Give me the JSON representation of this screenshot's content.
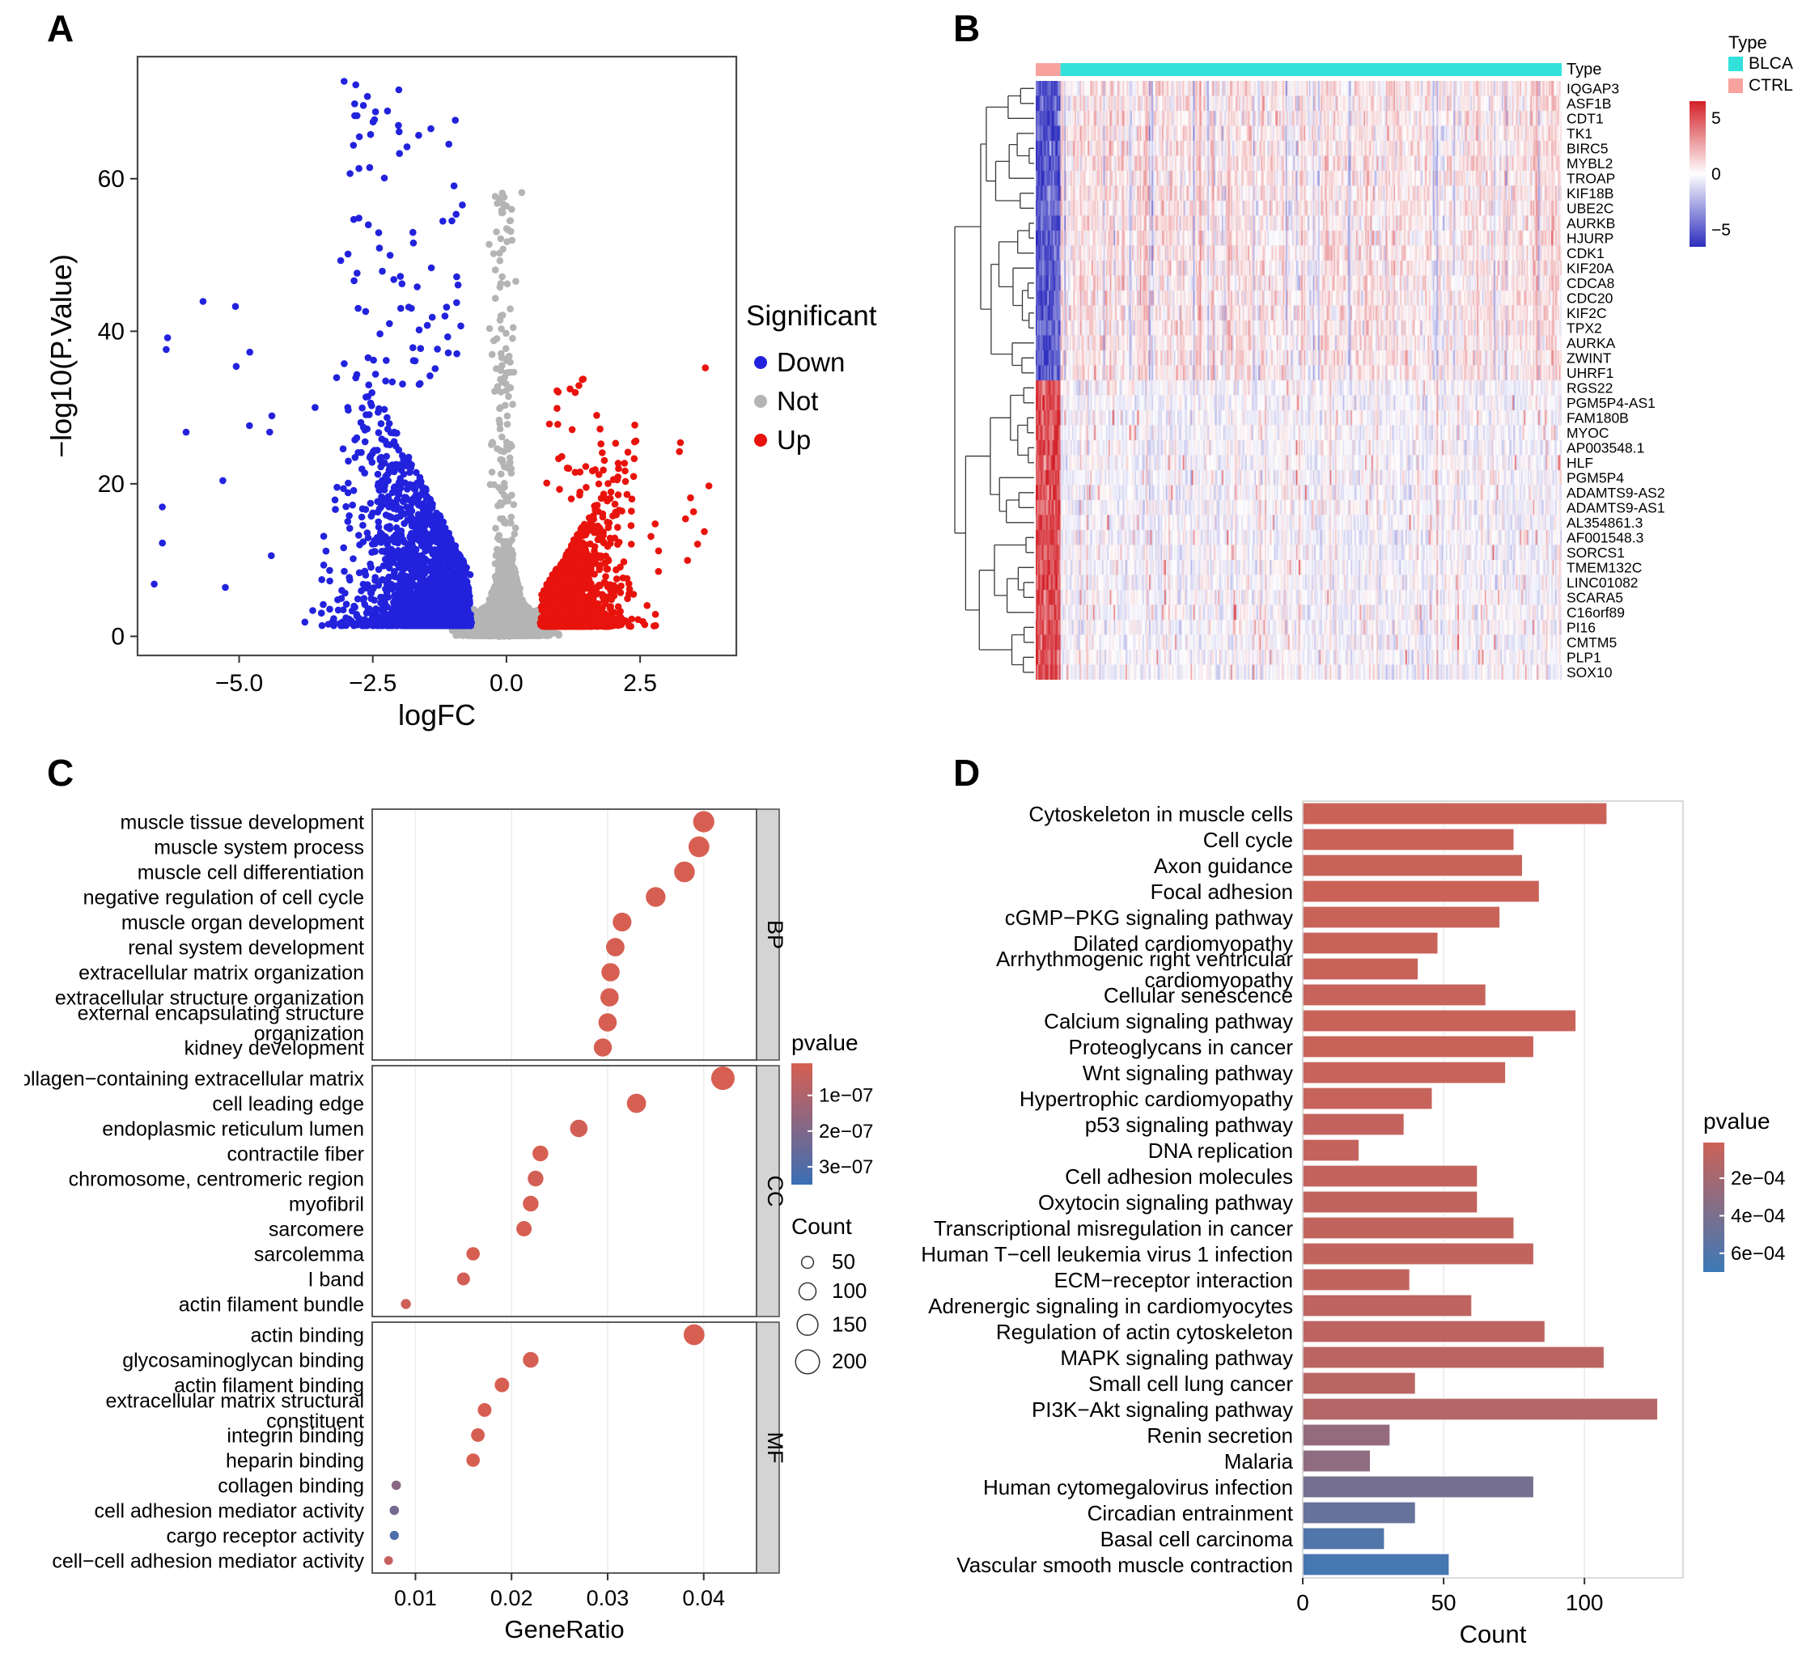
{
  "panels": {
    "a": {
      "label": "A"
    },
    "b": {
      "label": "B"
    },
    "c": {
      "label": "C"
    },
    "d": {
      "label": "D"
    }
  },
  "chart_data": [
    {
      "id": "volcano",
      "type": "scatter",
      "title": "",
      "xlabel": "logFC",
      "ylabel": "−log10(P.Value)",
      "xlim": [
        -6.9,
        4.3
      ],
      "ylim": [
        -2.5,
        76
      ],
      "x_tick_values": [
        -5,
        -2.5,
        0,
        2.5
      ],
      "x_tick_labels": [
        "−5.0",
        "−2.5",
        "0.0",
        "2.5"
      ],
      "y_tick_values": [
        0,
        20,
        40,
        60
      ],
      "y_tick_labels": [
        "0",
        "20",
        "40",
        "60"
      ],
      "legend": {
        "title": "Significant",
        "entries": [
          {
            "label": "Down",
            "color": "#2222DD"
          },
          {
            "label": "Not",
            "color": "#B4B4B4"
          },
          {
            "label": "Up",
            "color": "#E8130C"
          }
        ]
      },
      "groups": [
        {
          "name": "Down",
          "color": "#2222DD",
          "n": 2300,
          "logfc_range": [
            -6.6,
            -0.62
          ]
        },
        {
          "name": "Not",
          "color": "#B4B4B4",
          "n": 3000,
          "logfc_range": [
            -1.05,
            1.05
          ]
        },
        {
          "name": "Up",
          "color": "#E8130C",
          "n": 1560,
          "logfc_range": [
            0.62,
            3.9
          ]
        }
      ],
      "seed": 1234
    },
    {
      "id": "heatmap",
      "type": "heatmap",
      "annotation_label": "Type",
      "samples": {
        "CTRL": 19,
        "BLCA": 385
      },
      "type_legend": {
        "title": "Type",
        "entries": [
          {
            "label": "BLCA",
            "color": "#33E1DC"
          },
          {
            "label": "CTRL",
            "color": "#F8A29E"
          }
        ]
      },
      "colorbar": {
        "tick_labels": [
          "5",
          "0",
          "−5"
        ],
        "tick_values": [
          5,
          0,
          -5
        ],
        "range": [
          -6.5,
          6.5
        ],
        "high_color": "#D32028",
        "mid_color": "#FFFFFF",
        "low_color": "#2D2DBE"
      },
      "gene_clusters": [
        {
          "pattern": "low-in-CTRL-high-in-BLCA",
          "genes": [
            "IQGAP3",
            "ASF1B",
            "CDT1",
            "TK1",
            "BIRC5",
            "MYBL2",
            "TROAP",
            "KIF18B",
            "UBE2C",
            "AURKB",
            "HJURP",
            "CDK1",
            "KIF20A",
            "CDCA8",
            "CDC20",
            "KIF2C",
            "TPX2",
            "AURKA",
            "ZWINT",
            "UHRF1"
          ]
        },
        {
          "pattern": "high-in-CTRL-low-in-BLCA",
          "genes": [
            "RGS22",
            "PGM5P4-AS1",
            "FAM180B",
            "MYOC",
            "AP003548.1",
            "HLF",
            "PGM5P4",
            "ADAMTS9-AS2",
            "ADAMTS9-AS1",
            "AL354861.3",
            "AF001548.3",
            "SORCS1",
            "TMEM132C",
            "LINC01082",
            "SCARA5",
            "C16orf89",
            "PI16",
            "CMTM5",
            "PLP1",
            "SOX10"
          ]
        }
      ],
      "seed": 77
    },
    {
      "id": "go-dotplot",
      "type": "scatter",
      "xlabel": "GeneRatio",
      "xlim": [
        0.0055,
        0.0455
      ],
      "x_tick_values": [
        0.01,
        0.02,
        0.03,
        0.04
      ],
      "x_tick_labels": [
        "0.01",
        "0.02",
        "0.03",
        "0.04"
      ],
      "pvalue_legend": {
        "title": "pvalue",
        "tick_values": [
          1e-07,
          2e-07,
          3e-07
        ],
        "tick_labels": [
          "1e−07",
          "2e−07",
          "3e−07"
        ],
        "domain": [
          1e-08,
          3.5e-07
        ],
        "low_color": "#D75F52",
        "high_color": "#3A6FB5"
      },
      "count_legend": {
        "title": "Count",
        "sizes": [
          50,
          100,
          150,
          200
        ]
      },
      "facets": [
        {
          "name": "BP",
          "items": [
            {
              "label": "muscle tissue development",
              "gene_ratio": 0.04,
              "count": 155,
              "pvalue": 1e-08
            },
            {
              "label": "muscle system process",
              "gene_ratio": 0.0395,
              "count": 152,
              "pvalue": 1e-08
            },
            {
              "label": "muscle cell differentiation",
              "gene_ratio": 0.038,
              "count": 148,
              "pvalue": 1e-08
            },
            {
              "label": "negative regulation of cell cycle",
              "gene_ratio": 0.035,
              "count": 135,
              "pvalue": 1.5e-08
            },
            {
              "label": "muscle organ development",
              "gene_ratio": 0.0315,
              "count": 122,
              "pvalue": 1e-08
            },
            {
              "label": "renal system development",
              "gene_ratio": 0.0308,
              "count": 118,
              "pvalue": 1.2e-08
            },
            {
              "label": "extracellular matrix organization",
              "gene_ratio": 0.0303,
              "count": 116,
              "pvalue": 1e-08
            },
            {
              "label": "extracellular structure organization",
              "gene_ratio": 0.0302,
              "count": 116,
              "pvalue": 1e-08
            },
            {
              "label": "external encapsulating structure",
              "label2": "organization",
              "gene_ratio": 0.03,
              "count": 115,
              "pvalue": 1e-08
            },
            {
              "label": "kidney development",
              "gene_ratio": 0.0295,
              "count": 113,
              "pvalue": 1.4e-08
            }
          ]
        },
        {
          "name": "CC",
          "items": [
            {
              "label": "collagen−containing extracellular matrix",
              "gene_ratio": 0.042,
              "count": 190,
              "pvalue": 1e-08
            },
            {
              "label": "cell leading edge",
              "gene_ratio": 0.033,
              "count": 128,
              "pvalue": 1e-08
            },
            {
              "label": "endoplasmic reticulum lumen",
              "gene_ratio": 0.027,
              "count": 105,
              "pvalue": 2e-08
            },
            {
              "label": "contractile fiber",
              "gene_ratio": 0.023,
              "count": 88,
              "pvalue": 1e-08
            },
            {
              "label": "chromosome, centromeric region",
              "gene_ratio": 0.0225,
              "count": 86,
              "pvalue": 2e-08
            },
            {
              "label": "myofibril",
              "gene_ratio": 0.022,
              "count": 85,
              "pvalue": 1e-08
            },
            {
              "label": "sarcomere",
              "gene_ratio": 0.0213,
              "count": 82,
              "pvalue": 1e-08
            },
            {
              "label": "sarcolemma",
              "gene_ratio": 0.016,
              "count": 62,
              "pvalue": 1e-08
            },
            {
              "label": "I band",
              "gene_ratio": 0.015,
              "count": 58,
              "pvalue": 2e-08
            },
            {
              "label": "actin filament bundle",
              "gene_ratio": 0.009,
              "count": 35,
              "pvalue": 3e-08
            }
          ]
        },
        {
          "name": "MF",
          "items": [
            {
              "label": "actin binding",
              "gene_ratio": 0.039,
              "count": 150,
              "pvalue": 1e-08
            },
            {
              "label": "glycosaminoglycan binding",
              "gene_ratio": 0.022,
              "count": 85,
              "pvalue": 1.5e-08
            },
            {
              "label": "actin filament binding",
              "gene_ratio": 0.019,
              "count": 73,
              "pvalue": 1e-08
            },
            {
              "label": "extracellular matrix structural",
              "label2": "constituent",
              "gene_ratio": 0.0172,
              "count": 66,
              "pvalue": 1e-08
            },
            {
              "label": "integrin binding",
              "gene_ratio": 0.0165,
              "count": 64,
              "pvalue": 1.2e-08
            },
            {
              "label": "heparin binding",
              "gene_ratio": 0.016,
              "count": 62,
              "pvalue": 1e-08
            },
            {
              "label": "collagen binding",
              "gene_ratio": 0.008,
              "count": 31,
              "pvalue": 1.8e-07
            },
            {
              "label": "cell adhesion mediator activity",
              "gene_ratio": 0.0078,
              "count": 30,
              "pvalue": 2.2e-07
            },
            {
              "label": "cargo receptor activity",
              "gene_ratio": 0.0078,
              "count": 28,
              "pvalue": 3.1e-07
            },
            {
              "label": "cell−cell adhesion mediator activity",
              "gene_ratio": 0.0072,
              "count": 26,
              "pvalue": 5e-08
            }
          ]
        }
      ]
    },
    {
      "id": "kegg-bar",
      "type": "bar",
      "xlabel": "Count",
      "xlim": [
        0,
        135
      ],
      "x_tick_values": [
        0,
        50,
        100
      ],
      "x_tick_labels": [
        "0",
        "50",
        "100"
      ],
      "pvalue_legend": {
        "title": "pvalue",
        "tick_values": [
          0.0002,
          0.0004,
          0.0006
        ],
        "tick_labels": [
          "2e−04",
          "4e−04",
          "6e−04"
        ],
        "domain": [
          1e-05,
          0.0007
        ],
        "low_color": "#CC6257",
        "high_color": "#3C79B7"
      },
      "bars": [
        {
          "label": "Cytoskeleton in muscle cells",
          "count": 108,
          "pvalue": 2e-05
        },
        {
          "label": "Cell cycle",
          "count": 75,
          "pvalue": 2e-05
        },
        {
          "label": "Axon guidance",
          "count": 78,
          "pvalue": 3e-05
        },
        {
          "label": "Focal adhesion",
          "count": 84,
          "pvalue": 2e-05
        },
        {
          "label": "cGMP−PKG signaling pathway",
          "count": 70,
          "pvalue": 3e-05
        },
        {
          "label": "Dilated cardiomyopathy",
          "count": 48,
          "pvalue": 3e-05
        },
        {
          "label": "Arrhythmogenic right ventricular",
          "label2": "cardiomyopathy",
          "count": 41,
          "pvalue": 3e-05
        },
        {
          "label": "Cellular senescence",
          "count": 65,
          "pvalue": 4e-05
        },
        {
          "label": "Calcium signaling pathway",
          "count": 97,
          "pvalue": 3e-05
        },
        {
          "label": "Proteoglycans in cancer",
          "count": 82,
          "pvalue": 3e-05
        },
        {
          "label": "Wnt signaling pathway",
          "count": 72,
          "pvalue": 4e-05
        },
        {
          "label": "Hypertrophic cardiomyopathy",
          "count": 46,
          "pvalue": 4e-05
        },
        {
          "label": "p53 signaling pathway",
          "count": 36,
          "pvalue": 5e-05
        },
        {
          "label": "DNA replication",
          "count": 20,
          "pvalue": 5e-05
        },
        {
          "label": "Cell adhesion molecules",
          "count": 62,
          "pvalue": 5e-05
        },
        {
          "label": "Oxytocin signaling pathway",
          "count": 62,
          "pvalue": 6e-05
        },
        {
          "label": "Transcriptional misregulation in cancer",
          "count": 75,
          "pvalue": 6e-05
        },
        {
          "label": "Human T−cell leukemia virus 1 infection",
          "count": 82,
          "pvalue": 6e-05
        },
        {
          "label": "ECM−receptor interaction",
          "count": 38,
          "pvalue": 6e-05
        },
        {
          "label": "Adrenergic signaling in cardiomyocytes",
          "count": 60,
          "pvalue": 7e-05
        },
        {
          "label": "Regulation of actin cytoskeleton",
          "count": 86,
          "pvalue": 8e-05
        },
        {
          "label": "MAPK signaling pathway",
          "count": 107,
          "pvalue": 9e-05
        },
        {
          "label": "Small cell lung cancer",
          "count": 40,
          "pvalue": 0.0001
        },
        {
          "label": "PI3K−Akt signaling pathway",
          "count": 126,
          "pvalue": 0.00012
        },
        {
          "label": "Renin secretion",
          "count": 31,
          "pvalue": 0.00028
        },
        {
          "label": "Malaria",
          "count": 24,
          "pvalue": 0.0003
        },
        {
          "label": "Human cytomegalovirus infection",
          "count": 82,
          "pvalue": 0.00042
        },
        {
          "label": "Circadian entrainment",
          "count": 40,
          "pvalue": 0.0005
        },
        {
          "label": "Basal cell carcinoma",
          "count": 29,
          "pvalue": 0.0006
        },
        {
          "label": "Vascular smooth muscle contraction",
          "count": 52,
          "pvalue": 0.00065
        }
      ]
    }
  ]
}
